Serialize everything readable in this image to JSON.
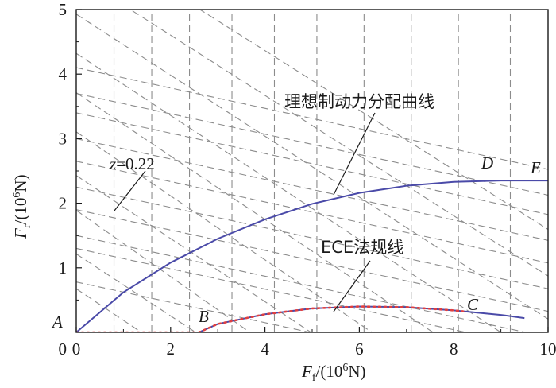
{
  "chart_data": {
    "type": "line",
    "xlabel": {
      "symbol": "F",
      "subscript": "f",
      "unit_pre": "/(10",
      "sup": "6",
      "unit_post": "N)"
    },
    "ylabel": {
      "symbol": "F",
      "subscript": "r",
      "unit_pre": "/(10",
      "sup": "6",
      "unit_post": "N)"
    },
    "xlim": [
      0,
      10
    ],
    "ylim": [
      0,
      5
    ],
    "x_ticks": [
      0,
      2,
      4,
      6,
      8,
      10
    ],
    "y_ticks": [
      1,
      2,
      3,
      4,
      5
    ],
    "colors": {
      "ideal": "#4a4aa8",
      "ece": "#4a4aa8",
      "ece_dots": "#e04040",
      "grid": "#8c8c8c"
    },
    "series": [
      {
        "name": "理想制动力分配曲线",
        "x": [
          0,
          1,
          2,
          3,
          4,
          5,
          6,
          7,
          8,
          9,
          10
        ],
        "y": [
          0,
          0.62,
          1.08,
          1.45,
          1.75,
          1.99,
          2.16,
          2.27,
          2.33,
          2.35,
          2.35
        ]
      },
      {
        "name": "ECE法规线",
        "x": [
          0,
          2.6,
          3,
          4,
          5,
          6,
          7,
          8,
          9,
          9.5
        ],
        "y": [
          0,
          0,
          0.13,
          0.28,
          0.37,
          0.4,
          0.39,
          0.34,
          0.27,
          0.22
        ]
      }
    ],
    "ece_dotted_x_max": 8.2,
    "z_lines": {
      "x_intercepts": [
        0.8,
        1.6,
        2.4,
        3.3,
        4.2,
        5.1,
        6.1,
        7.1,
        8.1,
        9.2
      ],
      "y_intercepts": [
        0.5,
        0.9,
        1.4,
        1.8,
        2.3,
        2.75,
        3.2,
        3.65,
        4.1,
        4.6
      ]
    },
    "f_lines": {
      "x_intercepts": [
        0.8,
        1.6,
        2.4,
        3.3,
        4.2,
        5.1,
        6.1,
        7.1,
        8.1,
        9.2
      ],
      "slope": -0.45,
      "offset_y": [
        0.38,
        0.9,
        1.1,
        1.5,
        1.85,
        2.25,
        2.6,
        3.0,
        3.3,
        3.7
      ]
    },
    "annotations": {
      "ideal_label": "理想制动力分配曲线",
      "ece_label": "ECE法规线",
      "z_label_var": "z",
      "z_label_val": "=0.22",
      "points": [
        "A",
        "B",
        "C",
        "D",
        "E"
      ]
    }
  }
}
